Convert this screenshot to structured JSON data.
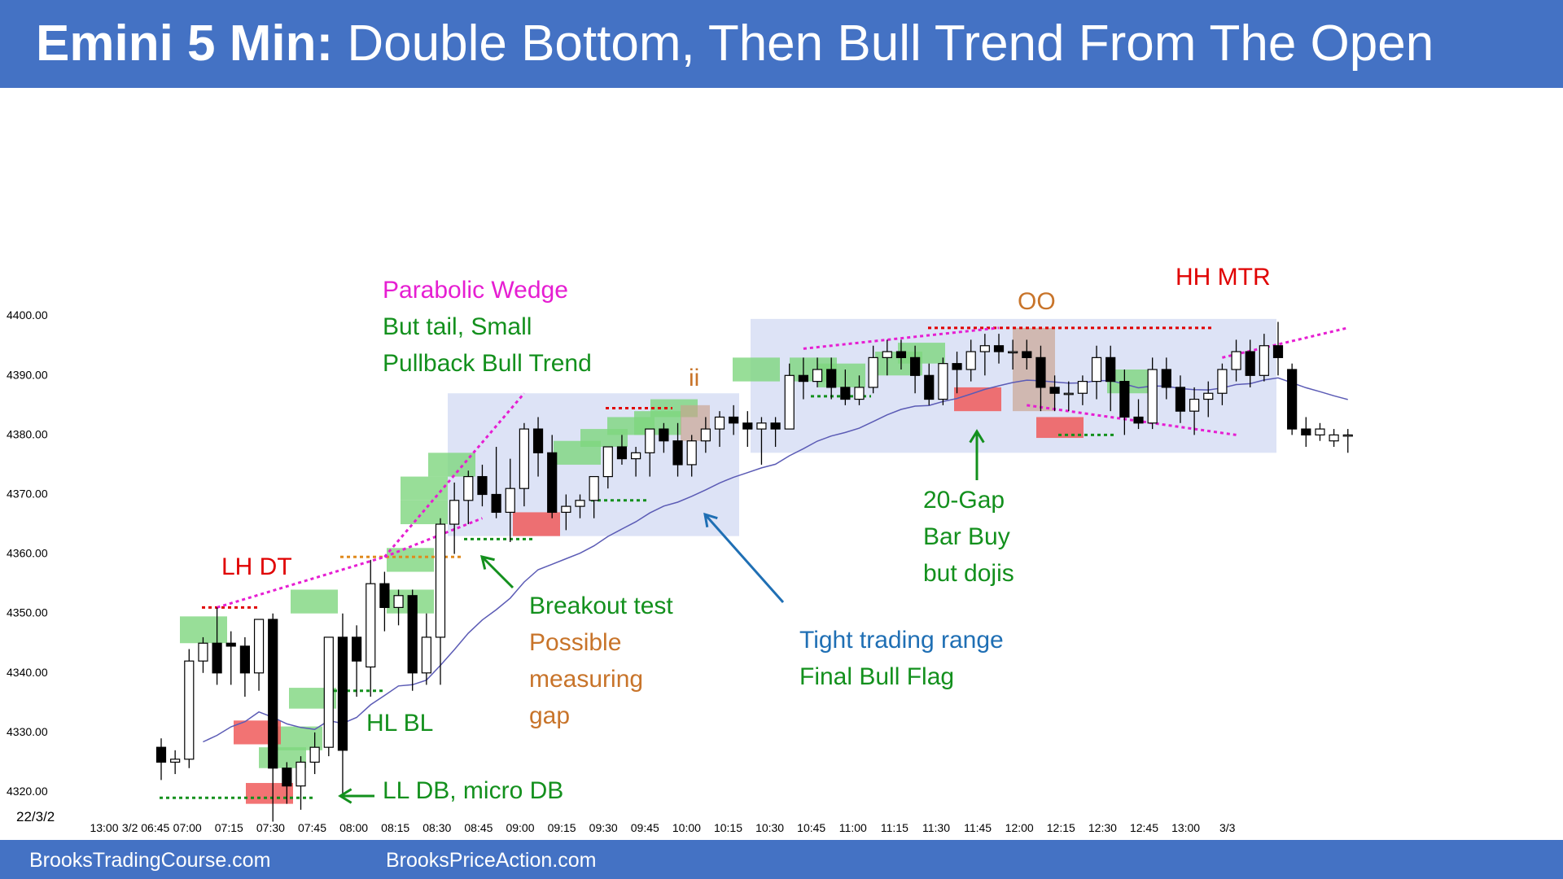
{
  "title": {
    "bold": "Emini 5 Min:",
    "rest": "Double Bottom, Then Bull Trend From The Open"
  },
  "footer": {
    "left": "BrooksTradingCourse.com",
    "right": "BrooksPriceAction.com"
  },
  "colors": {
    "bar": "#4472c4",
    "green_box": "#7ed67e",
    "red_box": "#f05a5a",
    "tan_box": "#c9a28c",
    "range_box": "#dde3f6",
    "ema": "#5b5bb5",
    "magenta": "#e61ed2"
  },
  "chart_data": {
    "type": "candlestick",
    "symbol": "Emini",
    "timeframe": "5 Min",
    "date_label": "22/3/2",
    "ylim": [
      4317,
      4405
    ],
    "yticks": [
      "4320.00",
      "4330.00",
      "4340.00",
      "4350.00",
      "4360.00",
      "4370.00",
      "4380.00",
      "4390.00",
      "4400.00"
    ],
    "xticks": [
      "13:00",
      "3/2 06:45",
      "07:00",
      "07:15",
      "07:30",
      "07:45",
      "08:00",
      "08:15",
      "08:30",
      "08:45",
      "09:00",
      "09:15",
      "09:30",
      "09:45",
      "10:00",
      "10:15",
      "10:30",
      "10:45",
      "11:00",
      "11:15",
      "11:30",
      "11:45",
      "12:00",
      "12:15",
      "12:30",
      "12:45",
      "13:00",
      "3/3"
    ],
    "bars": [
      [
        4327.5,
        4329,
        4322,
        4325
      ],
      [
        4325,
        4327,
        4323,
        4325.5
      ],
      [
        4325.5,
        4344,
        4324,
        4342
      ],
      [
        4342,
        4346,
        4340,
        4345
      ],
      [
        4345,
        4351,
        4338,
        4340
      ],
      [
        4345,
        4347,
        4338,
        4344.5
      ],
      [
        4344.5,
        4346,
        4336,
        4340
      ],
      [
        4340,
        4349,
        4337,
        4349
      ],
      [
        4349,
        4350,
        4315,
        4324
      ],
      [
        4324,
        4325,
        4318,
        4321
      ],
      [
        4321,
        4326,
        4317,
        4325
      ],
      [
        4325,
        4330,
        4323,
        4327.5
      ],
      [
        4327.5,
        4346,
        4326,
        4346
      ],
      [
        4346,
        4350,
        4319,
        4327
      ],
      [
        4346,
        4348,
        4336,
        4342
      ],
      [
        4341,
        4359,
        4336,
        4355
      ],
      [
        4355,
        4357,
        4347,
        4351
      ],
      [
        4351,
        4354,
        4348,
        4353
      ],
      [
        4353,
        4354,
        4337,
        4340
      ],
      [
        4340,
        4350,
        4338,
        4346
      ],
      [
        4346,
        4366,
        4338,
        4365
      ],
      [
        4365,
        4372,
        4360,
        4369
      ],
      [
        4369,
        4374,
        4365,
        4373
      ],
      [
        4373,
        4375,
        4368,
        4370
      ],
      [
        4370,
        4378,
        4366,
        4367
      ],
      [
        4367,
        4376,
        4362,
        4371
      ],
      [
        4371,
        4382,
        4368,
        4381
      ],
      [
        4381,
        4383,
        4373,
        4377
      ],
      [
        4377,
        4380,
        4366,
        4367
      ],
      [
        4367,
        4370,
        4364,
        4368
      ],
      [
        4368,
        4370,
        4366,
        4369
      ],
      [
        4369,
        4372,
        4366,
        4373
      ],
      [
        4373,
        4377,
        4371,
        4378
      ],
      [
        4378,
        4380,
        4375,
        4376
      ],
      [
        4376,
        4378,
        4373,
        4377
      ],
      [
        4377,
        4381,
        4373,
        4381
      ],
      [
        4381,
        4382,
        4377,
        4379
      ],
      [
        4379,
        4382,
        4373,
        4375
      ],
      [
        4375,
        4380,
        4373,
        4379
      ],
      [
        4379,
        4383,
        4377,
        4381
      ],
      [
        4381,
        4384,
        4378,
        4383
      ],
      [
        4383,
        4385,
        4380,
        4382
      ],
      [
        4382,
        4384,
        4378,
        4381
      ],
      [
        4381,
        4383,
        4375,
        4382
      ],
      [
        4382,
        4383,
        4378,
        4381
      ],
      [
        4381,
        4392,
        4381,
        4390
      ],
      [
        4390,
        4393,
        4386,
        4389
      ],
      [
        4389,
        4393,
        4388,
        4391
      ],
      [
        4391,
        4393,
        4386,
        4388
      ],
      [
        4388,
        4391,
        4385,
        4386
      ],
      [
        4386,
        4390,
        4385,
        4388
      ],
      [
        4388,
        4395,
        4387,
        4393
      ],
      [
        4393,
        4396,
        4390,
        4394
      ],
      [
        4394,
        4396,
        4391,
        4393
      ],
      [
        4393,
        4395,
        4387,
        4390
      ],
      [
        4390,
        4392,
        4385,
        4386
      ],
      [
        4386,
        4393,
        4385,
        4392
      ],
      [
        4392,
        4394,
        4387,
        4391
      ],
      [
        4391,
        4396,
        4389,
        4394
      ],
      [
        4394,
        4397,
        4390,
        4395
      ],
      [
        4395,
        4397,
        4392,
        4394
      ],
      [
        4394,
        4396,
        4391,
        4394
      ],
      [
        4394,
        4396,
        4391,
        4393
      ],
      [
        4393,
        4395,
        4384,
        4388
      ],
      [
        4388,
        4390,
        4384,
        4387
      ],
      [
        4387,
        4389,
        4384,
        4387
      ],
      [
        4387,
        4390,
        4385,
        4389
      ],
      [
        4389,
        4395,
        4386,
        4393
      ],
      [
        4393,
        4395,
        4384,
        4389
      ],
      [
        4389,
        4391,
        4380,
        4383
      ],
      [
        4383,
        4386,
        4381,
        4382
      ],
      [
        4382,
        4393,
        4381,
        4391
      ],
      [
        4391,
        4393,
        4386,
        4388
      ],
      [
        4388,
        4390,
        4382,
        4384
      ],
      [
        4384,
        4388,
        4380,
        4386
      ],
      [
        4386,
        4389,
        4383,
        4387
      ],
      [
        4387,
        4392,
        4385,
        4391
      ],
      [
        4391,
        4396,
        4389,
        4394
      ],
      [
        4394,
        4396,
        4388,
        4390
      ],
      [
        4390,
        4397,
        4389,
        4395
      ],
      [
        4395,
        4399,
        4390,
        4393
      ],
      [
        4391,
        4392,
        4380,
        4381
      ],
      [
        4381,
        4383,
        4378,
        4380
      ],
      [
        4380,
        4382,
        4379,
        4381
      ],
      [
        4379,
        4381,
        4378,
        4380
      ],
      [
        4380,
        4381,
        4377,
        4380
      ]
    ],
    "annotations": {
      "parabolic": "Parabolic Wedge",
      "but_tail": [
        "But tail, Small",
        "Pullback Bull Trend"
      ],
      "lh_dt": "LH DT",
      "hl_bl": "HL BL",
      "ll_db": "LL DB, micro DB",
      "breakout": [
        "Breakout test"
      ],
      "gap": [
        "Possible",
        "measuring",
        "gap"
      ],
      "tight": "Tight trading range",
      "final_flag": "Final Bull Flag",
      "gap_bar": [
        "20-Gap",
        "Bar Buy",
        "but dojis"
      ],
      "oo": "OO",
      "hh_mtr": "HH MTR",
      "ii": "ii"
    }
  }
}
